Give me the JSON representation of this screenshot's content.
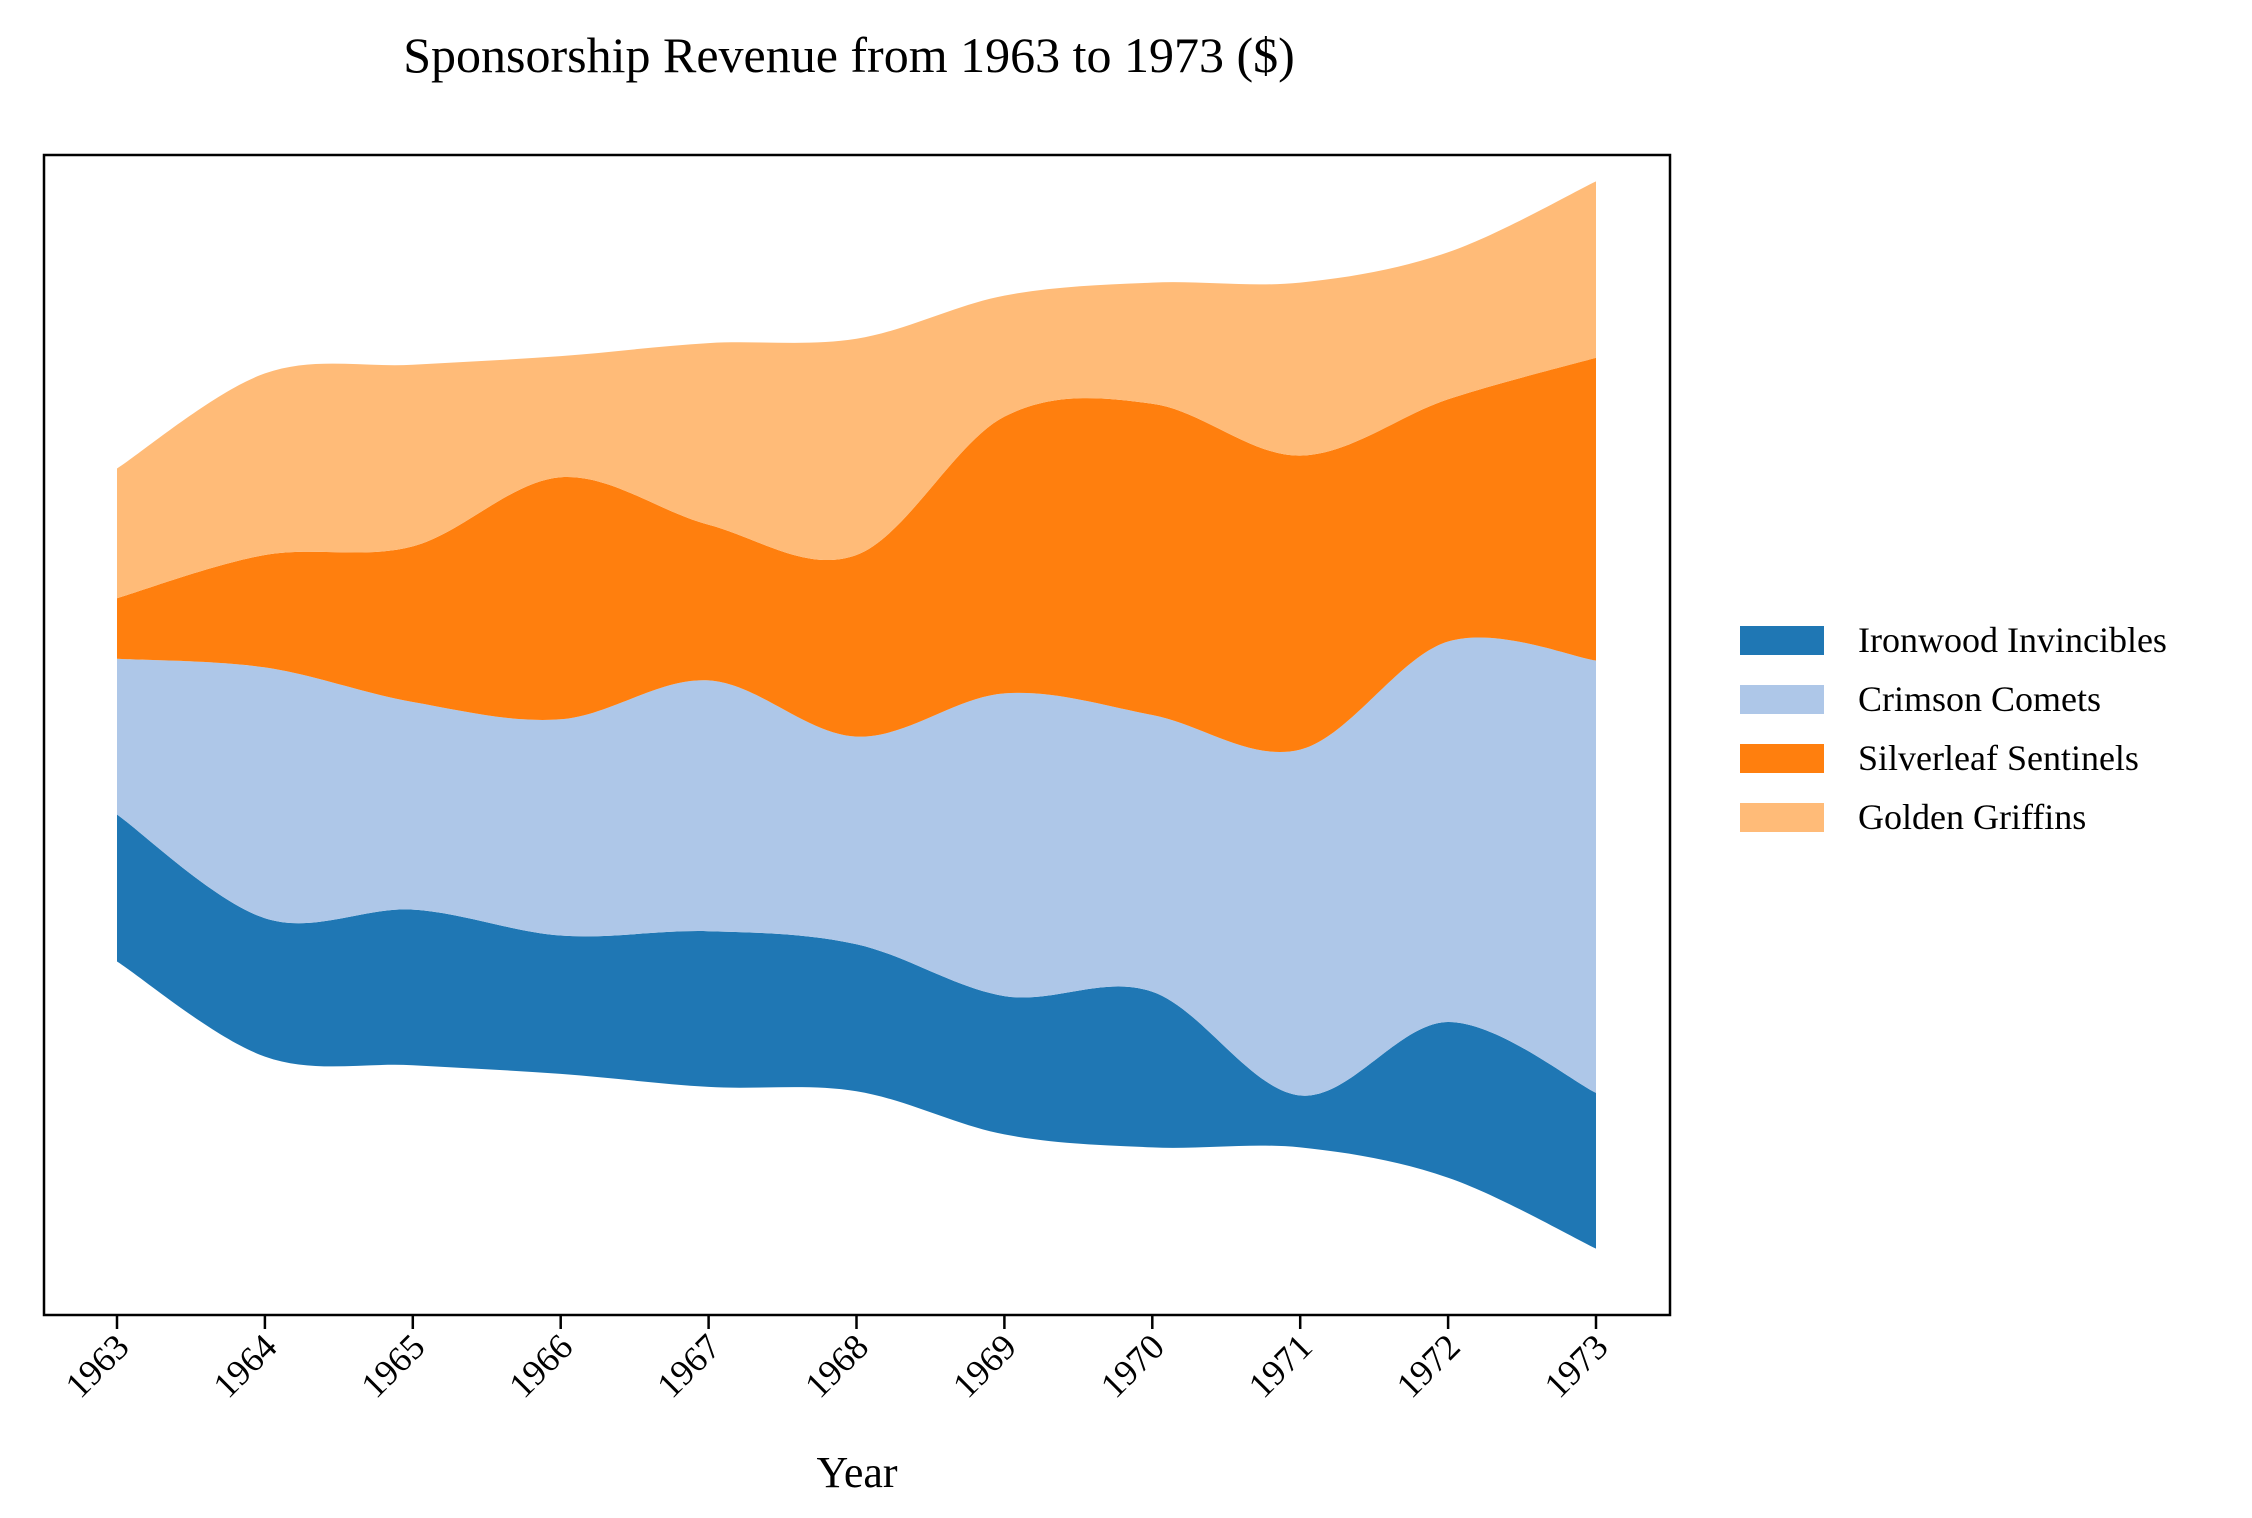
{
  "chart_data": {
    "type": "area",
    "subtype": "streamgraph",
    "title": "Sponsorship Revenue from 1963 to 1973 ($)",
    "xlabel": "Year",
    "ylabel": "",
    "x": [
      "1963",
      "1964",
      "1965",
      "1966",
      "1967",
      "1968",
      "1969",
      "1970",
      "1971",
      "1972",
      "1973"
    ],
    "baseline": "centered",
    "series": [
      {
        "name": "Ironwood Invincibles",
        "color": "#1f77b4",
        "values": [
          85,
          80,
          90,
          80,
          90,
          85,
          80,
          90,
          30,
          90,
          90
        ]
      },
      {
        "name": "Crimson Comets",
        "color": "#aec7e8",
        "values": [
          90,
          145,
          120,
          125,
          145,
          120,
          175,
          160,
          200,
          220,
          250
        ]
      },
      {
        "name": "Silverleaf Sentinels",
        "color": "#ff7f0e",
        "values": [
          35,
          65,
          90,
          140,
          90,
          105,
          160,
          180,
          170,
          140,
          175
        ]
      },
      {
        "name": "Golden Griffins",
        "color": "#ffbb78",
        "values": [
          75,
          105,
          105,
          70,
          105,
          125,
          70,
          70,
          100,
          85,
          102
        ]
      }
    ],
    "legend_position": "right",
    "grid": false,
    "y_ticks_visible": false
  }
}
